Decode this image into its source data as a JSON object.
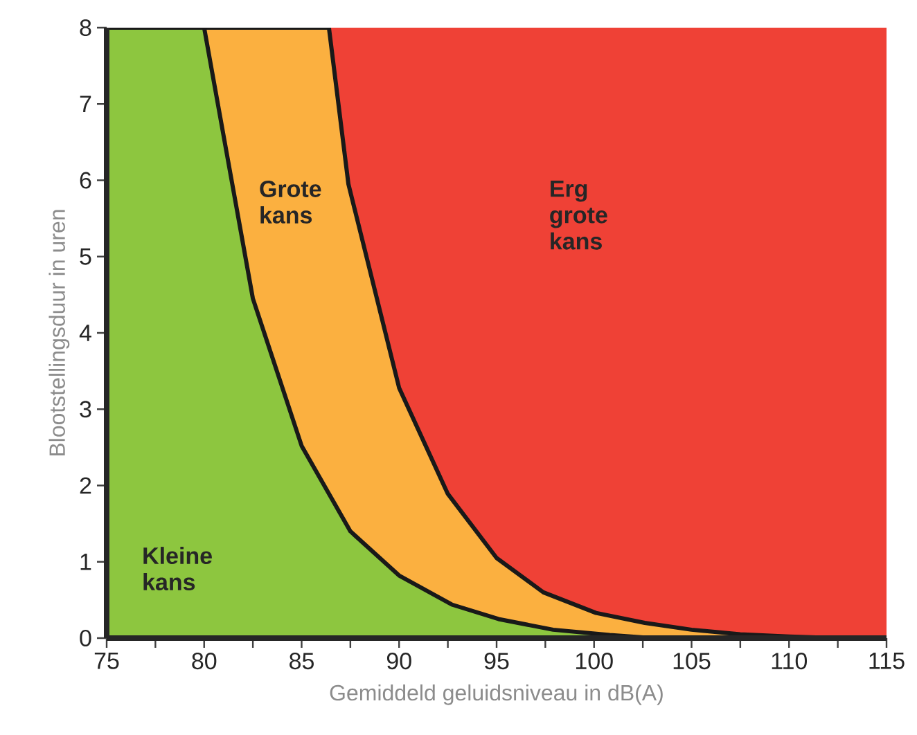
{
  "chart_data": {
    "type": "area",
    "xlabel": "Gemiddeld geluidsniveau in dB(A)",
    "ylabel": "Blootstellingsduur in uren",
    "xlim": [
      75,
      115
    ],
    "ylim": [
      0,
      8
    ],
    "xticks": [
      75,
      {
        "value": 77.5,
        "label": null
      },
      80,
      {
        "value": 82.5,
        "label": null
      },
      85,
      {
        "value": 87.5,
        "label": null
      },
      90,
      {
        "value": 92.5,
        "label": null
      },
      95,
      {
        "value": 97.5,
        "label": null
      },
      100,
      {
        "value": 102.5,
        "label": null
      },
      105,
      {
        "value": 107.5,
        "label": null
      },
      110,
      {
        "value": 112.5,
        "label": null
      },
      115
    ],
    "yticks": [
      0,
      1,
      2,
      3,
      4,
      5,
      6,
      7,
      8
    ],
    "series": [
      {
        "color": "#fbb040",
        "x": [
          75,
          86.4,
          87.4,
          90,
          92.5,
          95,
          97.4,
          100.1,
          102.6,
          105,
          107.5,
          110,
          112.5
        ],
        "values": [
          8,
          8,
          5.95,
          3.28,
          1.89,
          1.05,
          0.6,
          0.33,
          0.2,
          0.11,
          0.05,
          0.02,
          0
        ]
      },
      {
        "color": "#8dc63f",
        "x": [
          75,
          80,
          82.5,
          85,
          87.5,
          90,
          92.7,
          95.1,
          97.9,
          100.8,
          103
        ],
        "values": [
          8,
          8,
          4.45,
          2.52,
          1.4,
          0.82,
          0.44,
          0.25,
          0.11,
          0.04,
          0
        ]
      }
    ],
    "bands": [
      {
        "axis": "x",
        "from": 75,
        "to": 115,
        "color": "#ef4136"
      }
    ],
    "annotations": [
      "Kleine kans",
      "Grote kans",
      "Erg grote kans"
    ]
  }
}
